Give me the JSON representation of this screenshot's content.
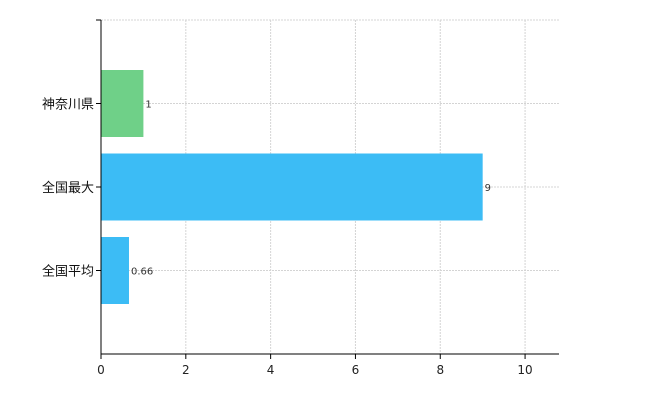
{
  "chart_data": {
    "type": "bar",
    "orientation": "horizontal",
    "categories": [
      "神奈川県",
      "全国最大",
      "全国平均"
    ],
    "values": [
      1,
      9,
      0.66
    ],
    "data_labels": [
      "1",
      "9",
      "0.66"
    ],
    "colors": [
      "#6fd088",
      "#3cbcf5",
      "#3cbcf5"
    ],
    "xlim": [
      0,
      10.8
    ],
    "xticks": [
      0,
      2,
      4,
      6,
      8,
      10
    ],
    "tick_labels": [
      "0",
      "2",
      "4",
      "6",
      "8",
      "10"
    ],
    "grid": true,
    "legend": "none",
    "title": "",
    "xlabel": "",
    "ylabel": ""
  }
}
